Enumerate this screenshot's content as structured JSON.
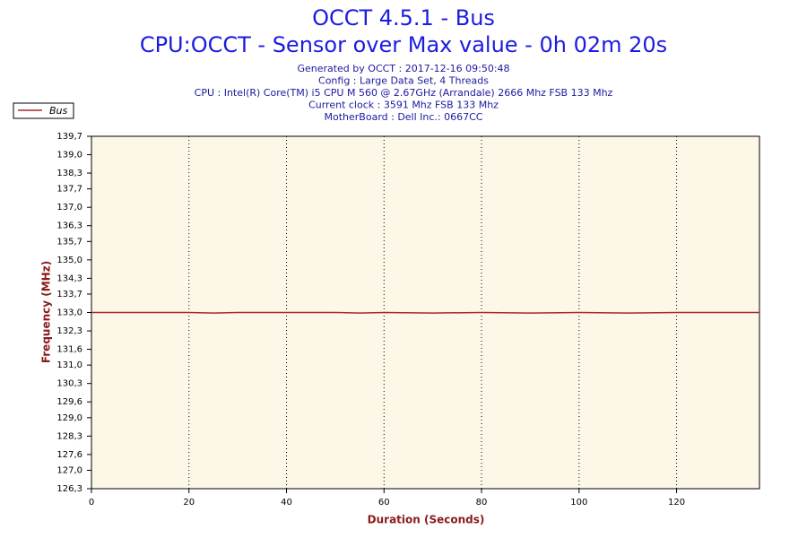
{
  "chart_data": {
    "type": "line",
    "title": "OCCT 4.5.1 - Bus",
    "subtitle": "CPU:OCCT - Sensor over Max value - 0h 02m 20s",
    "info": [
      "Generated by OCCT : 2017-12-16 09:50:48",
      "Config : Large Data Set, 4 Threads",
      "CPU : Intel(R) Core(TM) i5 CPU M 560 @ 2.67GHz (Arrandale) 2666 Mhz FSB 133 Mhz",
      "Current clock : 3591 Mhz FSB 133 Mhz",
      "MotherBoard : Dell Inc.: 0667CC"
    ],
    "x_label": "Duration (Seconds)",
    "y_label": "Frequency (MHz)",
    "x": [
      0,
      10,
      20,
      25,
      30,
      40,
      50,
      55,
      60,
      70,
      80,
      90,
      100,
      110,
      120,
      130,
      137
    ],
    "series": [
      {
        "name": "Bus",
        "color": "#a52a2a",
        "values": [
          133.0,
          133.0,
          133.0,
          132.98,
          133.0,
          133.0,
          133.0,
          132.98,
          133.0,
          132.98,
          133.0,
          132.98,
          133.0,
          132.98,
          133.0,
          133.0,
          133.0
        ]
      }
    ],
    "xlim": [
      0,
      137
    ],
    "xticks": [
      0,
      20,
      40,
      60,
      80,
      100,
      120
    ],
    "ylim": [
      126.3,
      139.7
    ],
    "yticks": [
      {
        "value": 126.3,
        "label": "126,3"
      },
      {
        "value": 127.0,
        "label": "127,0"
      },
      {
        "value": 127.6,
        "label": "127,6"
      },
      {
        "value": 128.3,
        "label": "128,3"
      },
      {
        "value": 129.0,
        "label": "129,0"
      },
      {
        "value": 129.6,
        "label": "129,6"
      },
      {
        "value": 130.3,
        "label": "130,3"
      },
      {
        "value": 131.0,
        "label": "131,0"
      },
      {
        "value": 131.6,
        "label": "131,6"
      },
      {
        "value": 132.3,
        "label": "132,3"
      },
      {
        "value": 133.0,
        "label": "133,0"
      },
      {
        "value": 133.7,
        "label": "133,7"
      },
      {
        "value": 134.3,
        "label": "134,3"
      },
      {
        "value": 135.0,
        "label": "135,0"
      },
      {
        "value": 135.7,
        "label": "135,7"
      },
      {
        "value": 136.3,
        "label": "136,3"
      },
      {
        "value": 137.0,
        "label": "137,0"
      },
      {
        "value": 137.7,
        "label": "137,7"
      },
      {
        "value": 138.3,
        "label": "138,3"
      },
      {
        "value": 139.0,
        "label": "139,0"
      },
      {
        "value": 139.7,
        "label": "139,7"
      }
    ],
    "grid": true,
    "legend": "top-left"
  }
}
